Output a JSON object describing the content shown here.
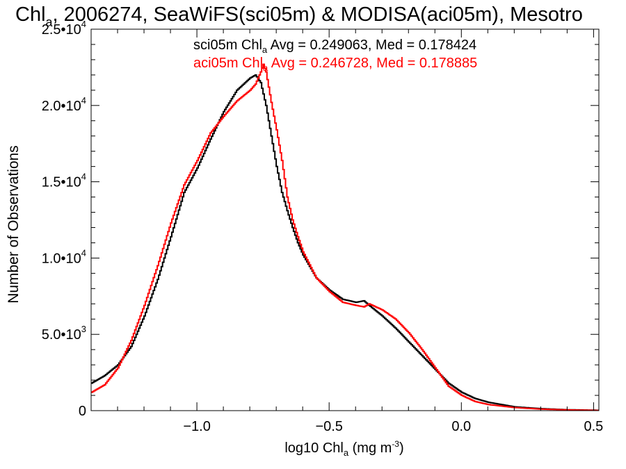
{
  "chart_data": {
    "type": "line",
    "step": true,
    "title": {
      "pre": "Chl",
      "sub": "a",
      "post": ", 2006274, SeaWiFS(sci05m) & MODISA(aci05m), Mesotro"
    },
    "xlabel": {
      "pre": "log10 Chl",
      "sub": "a",
      "mid": " (mg m",
      "sup": "-3",
      "post": ")"
    },
    "ylabel": "Number of Observations",
    "xlim": [
      -1.4,
      0.52
    ],
    "ylim": [
      0,
      25000
    ],
    "x_ticks": [
      -1.0,
      -0.5,
      0.0,
      0.5
    ],
    "x_tick_labels": [
      "−1.0",
      "−0.5",
      "0.0",
      "0.5"
    ],
    "y_ticks": [
      0,
      5000,
      10000,
      15000,
      20000,
      25000
    ],
    "y_tick_labels": [
      {
        "pre": "0",
        "sup": ""
      },
      {
        "pre": "5.0•10",
        "sup": "3"
      },
      {
        "pre": "1.0•10",
        "sup": "4"
      },
      {
        "pre": "1.5•10",
        "sup": "4"
      },
      {
        "pre": "2.0•10",
        "sup": "4"
      },
      {
        "pre": "2.5•10",
        "sup": "4"
      }
    ],
    "grid": false,
    "legend_position": "top",
    "series": [
      {
        "name": "sci05m",
        "color": "#000000",
        "annotation": {
          "pre": "sci05m Chl",
          "sub": "a",
          "post": " Avg = 0.249063, Med = 0.178424"
        },
        "x": [
          -1.4,
          -1.35,
          -1.3,
          -1.25,
          -1.2,
          -1.15,
          -1.1,
          -1.05,
          -1.0,
          -0.95,
          -0.9,
          -0.85,
          -0.8,
          -0.78,
          -0.76,
          -0.74,
          -0.72,
          -0.7,
          -0.68,
          -0.66,
          -0.64,
          -0.62,
          -0.6,
          -0.55,
          -0.5,
          -0.45,
          -0.4,
          -0.37,
          -0.35,
          -0.3,
          -0.25,
          -0.2,
          -0.15,
          -0.1,
          -0.05,
          0.0,
          0.05,
          0.1,
          0.2,
          0.3,
          0.4,
          0.5,
          0.52
        ],
        "y": [
          1800,
          2300,
          3000,
          4200,
          6200,
          8600,
          11400,
          14300,
          15900,
          17800,
          19600,
          21000,
          21800,
          22000,
          21500,
          20000,
          18000,
          16000,
          14300,
          13100,
          12000,
          11000,
          10200,
          8700,
          7900,
          7300,
          7100,
          7200,
          6900,
          6200,
          5400,
          4500,
          3600,
          2700,
          1800,
          1200,
          800,
          550,
          250,
          130,
          60,
          30,
          20
        ]
      },
      {
        "name": "aci05m",
        "color": "#ff0000",
        "annotation": {
          "pre": "aci05m Chl",
          "sub": "a",
          "post": " Avg = 0.246728, Med = 0.178885"
        },
        "x": [
          -1.4,
          -1.35,
          -1.3,
          -1.25,
          -1.2,
          -1.15,
          -1.1,
          -1.05,
          -1.0,
          -0.95,
          -0.9,
          -0.85,
          -0.8,
          -0.78,
          -0.76,
          -0.75,
          -0.74,
          -0.72,
          -0.7,
          -0.68,
          -0.66,
          -0.64,
          -0.62,
          -0.6,
          -0.55,
          -0.5,
          -0.45,
          -0.4,
          -0.37,
          -0.35,
          -0.3,
          -0.25,
          -0.2,
          -0.15,
          -0.1,
          -0.05,
          0.0,
          0.05,
          0.1,
          0.2,
          0.3,
          0.4,
          0.5,
          0.52
        ],
        "y": [
          1200,
          1700,
          2800,
          4600,
          6900,
          9500,
          12300,
          14800,
          16400,
          18200,
          19300,
          20300,
          21000,
          21400,
          22200,
          22700,
          22200,
          20200,
          18400,
          16400,
          14000,
          12500,
          11400,
          10400,
          8700,
          7800,
          7100,
          6900,
          6800,
          7000,
          6600,
          6000,
          5100,
          4000,
          2800,
          1600,
          1000,
          600,
          400,
          200,
          100,
          50,
          20,
          10
        ]
      }
    ]
  }
}
